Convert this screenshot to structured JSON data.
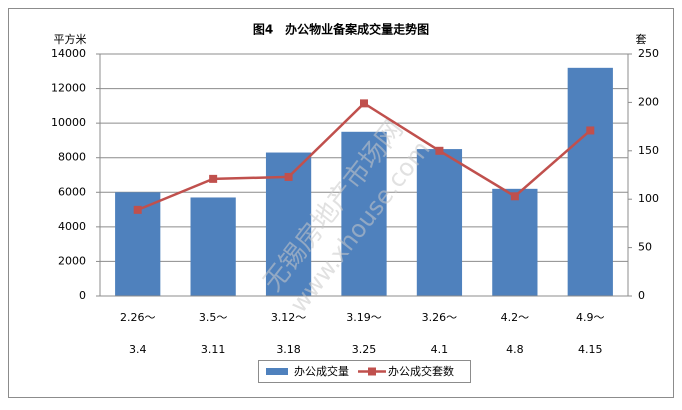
{
  "chart_data": {
    "type": "bar_line",
    "title": "图4　办公物业备案成交量走势图",
    "y_label": "平方米",
    "y2_label": "套",
    "categories": [
      [
        "2.26～",
        "3.4"
      ],
      [
        "3.5～",
        "3.11"
      ],
      [
        "3.12～",
        "3.18"
      ],
      [
        "3.19～",
        "3.25"
      ],
      [
        "3.26～",
        "4.1"
      ],
      [
        "4.2～",
        "4.8"
      ],
      [
        "4.9～",
        "4.15"
      ]
    ],
    "series": [
      {
        "name": "办公成交量",
        "color": "#4f81bd",
        "type": "bar",
        "values": [
          6000,
          5700,
          8300,
          9500,
          8500,
          6200,
          13200
        ]
      },
      {
        "name": "办公成交套数",
        "color": "#c0504d",
        "type": "line",
        "axis": "y2",
        "values": [
          89,
          121,
          123,
          199,
          150,
          103,
          171
        ]
      }
    ],
    "ylim": [
      0,
      14000
    ],
    "yticks": [
      0,
      2000,
      4000,
      6000,
      8000,
      10000,
      12000,
      14000
    ],
    "y2lim": [
      0,
      250
    ],
    "y2ticks": [
      0,
      50,
      100,
      150,
      200,
      250
    ],
    "grid": true,
    "legend": "bottom",
    "watermark": [
      "无锡房地产市场网",
      "www.xhouse.com"
    ]
  }
}
